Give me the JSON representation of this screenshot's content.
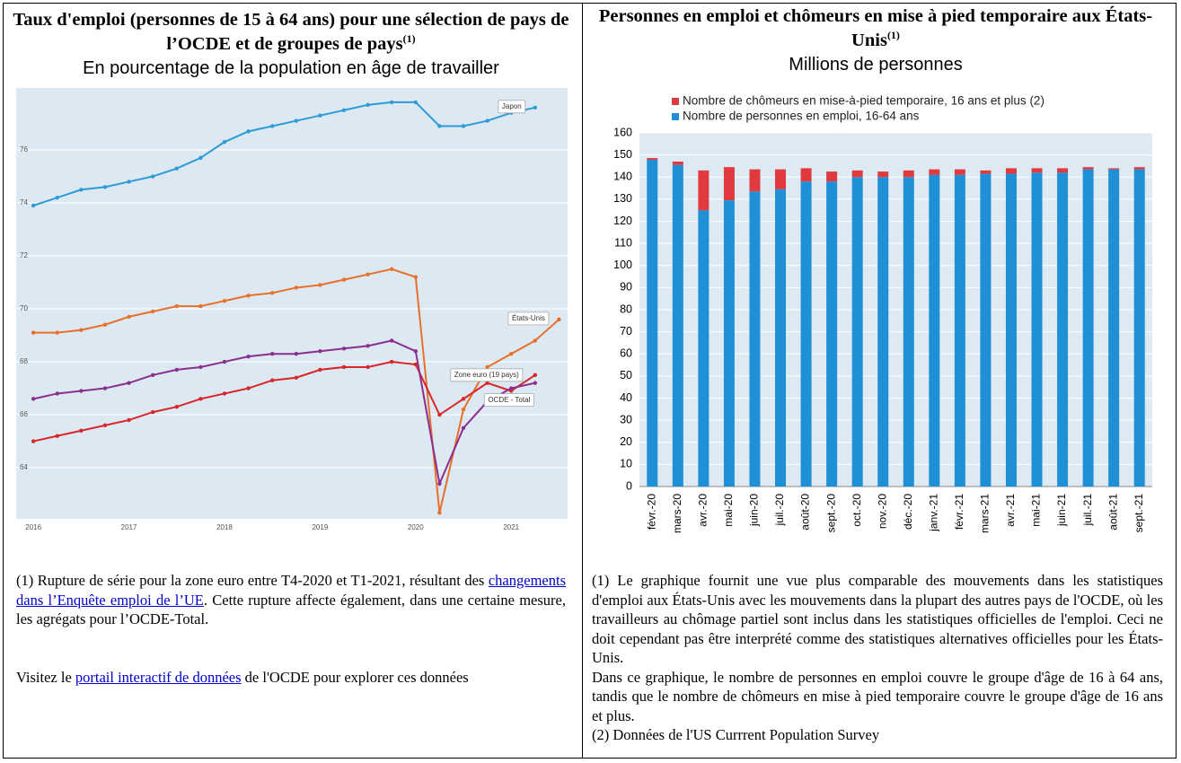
{
  "chart_data": [
    {
      "type": "line",
      "title": "Taux d'emploi (personnes de 15 à 64 ans) pour une sélection de pays de l’OCDE et de groupes de pays",
      "title_sup": "(1)",
      "subtitle": "En pourcentage de la population en âge de travailler",
      "x": [
        2016,
        2016.25,
        2016.5,
        2016.75,
        2017,
        2017.25,
        2017.5,
        2017.75,
        2018,
        2018.25,
        2018.5,
        2018.75,
        2019,
        2019.25,
        2019.5,
        2019.75,
        2020,
        2020.25,
        2020.5,
        2020.75,
        2021,
        2021.25,
        2021.5
      ],
      "xlim": [
        2015.82,
        2021.59
      ],
      "xticks": [
        2016,
        2017,
        2018,
        2019,
        2020,
        2021
      ],
      "ylim": [
        62.07,
        78.34
      ],
      "yticks": [
        64,
        66,
        68,
        70,
        72,
        74,
        76
      ],
      "grid": true,
      "series": [
        {
          "name": "Japon",
          "color": "#2e9bd6",
          "values": [
            73.9,
            74.2,
            74.5,
            74.6,
            74.8,
            75.0,
            75.3,
            75.7,
            76.3,
            76.7,
            76.9,
            77.1,
            77.3,
            77.5,
            77.7,
            77.8,
            77.8,
            76.9,
            76.9,
            77.1,
            77.4,
            77.6,
            null
          ]
        },
        {
          "name": "États-Unis",
          "color": "#e8702a",
          "values": [
            69.1,
            69.1,
            69.2,
            69.4,
            69.7,
            69.9,
            70.1,
            70.1,
            70.3,
            70.5,
            70.6,
            70.8,
            70.9,
            71.1,
            71.3,
            71.5,
            71.2,
            62.3,
            66.2,
            67.8,
            68.3,
            68.8,
            69.6
          ]
        },
        {
          "name": "Zone euro (19 pays)",
          "color": "#d9262b",
          "values": [
            65.0,
            65.2,
            65.4,
            65.6,
            65.8,
            66.1,
            66.3,
            66.6,
            66.8,
            67.0,
            67.3,
            67.4,
            67.7,
            67.8,
            67.8,
            68.0,
            67.9,
            66.0,
            66.6,
            67.2,
            66.9,
            67.5,
            null
          ]
        },
        {
          "name": "OCDE - Total",
          "color": "#8b2f8f",
          "values": [
            66.6,
            66.8,
            66.9,
            67.0,
            67.2,
            67.5,
            67.7,
            67.8,
            68.0,
            68.2,
            68.3,
            68.3,
            68.4,
            68.5,
            68.6,
            68.8,
            68.4,
            63.4,
            65.5,
            66.5,
            67.0,
            67.2,
            null
          ]
        }
      ]
    },
    {
      "type": "bar",
      "stacked": true,
      "title": "Personnes en emploi et chômeurs en mise à pied temporaire aux États-Unis",
      "title_sup": "(1)",
      "subtitle": "Millions de personnes",
      "categories": [
        "févr.-20",
        "mars-20",
        "avr.-20",
        "mai-20",
        "juin-20",
        "juil.-20",
        "août-20",
        "sept.-20",
        "oct.-20",
        "nov.-20",
        "déc.-20",
        "janv.-21",
        "févr.-21",
        "mars-21",
        "avr.-21",
        "mai-21",
        "juin-21",
        "juil.-21",
        "août-21",
        "sept.-21"
      ],
      "ylim": [
        0,
        160
      ],
      "yticks": [
        0,
        10,
        20,
        30,
        40,
        50,
        60,
        70,
        80,
        90,
        100,
        110,
        120,
        130,
        140,
        150,
        160
      ],
      "grid": true,
      "series": [
        {
          "name": "Nombre de chômeurs en mise-à-pied temporaire, 16 ans et plus (2)",
          "color": "#e03a3e",
          "values": [
            0.8,
            1.5,
            18.0,
            15.0,
            10.0,
            9.0,
            6.0,
            4.5,
            3.0,
            2.5,
            3.0,
            2.5,
            2.5,
            1.5,
            2.5,
            2.0,
            2.0,
            1.0,
            0.5,
            1.0
          ]
        },
        {
          "name": "Nombre de personnes en emploi, 16-64 ans",
          "color": "#1f8fd6",
          "values": [
            147.8,
            145.5,
            125.0,
            129.5,
            133.5,
            134.5,
            138.0,
            138.0,
            140.0,
            140.0,
            140.0,
            141.0,
            141.0,
            141.5,
            141.5,
            142.0,
            142.0,
            143.5,
            143.5,
            143.5
          ]
        }
      ]
    }
  ],
  "footnotes": {
    "left": [
      [
        "(1) Rupture de série pour la zone euro entre T4-2020 et T1-2021, résultant des ",
        "changements dans l’Enquête emploi de l’UE",
        ". Cette rupture affecte également, dans une certaine mesure, les agrégats pour l’OCDE-Total."
      ],
      [
        "Visitez le ",
        "portail interactif de données",
        " de l'OCDE pour explorer ces données"
      ]
    ],
    "right": [
      "(1) Le graphique fournit une vue plus comparable des mouvements dans les statistiques d'emploi aux États-Unis avec les mouvements dans la plupart des autres pays de l'OCDE, où les travailleurs au chômage partiel sont inclus dans les statistiques officielles de l'emploi. Ceci ne doit cependant pas être interprété comme des statistiques alternatives officielles pour les États-Unis.",
      "Dans ce graphique, le nombre de personnes en emploi couvre le groupe d'âge de 16 à 64 ans, tandis que le nombre de chômeurs en mise à pied temporaire couvre le groupe d'âge de 16 ans et plus.",
      "(2) Données de l'US Currrent Population Survey"
    ]
  }
}
